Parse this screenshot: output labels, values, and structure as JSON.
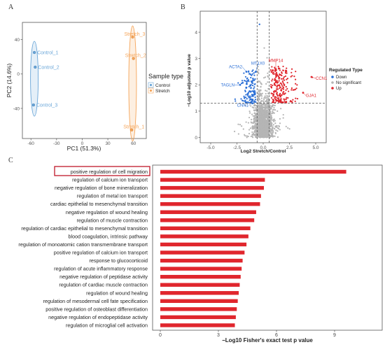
{
  "panels": {
    "a": "A",
    "b": "B",
    "c": "C"
  },
  "chart_data": [
    {
      "type": "scatter",
      "panel": "A",
      "xlabel": "PC1 (51.3%)",
      "ylabel": "PC2 (14.6%)",
      "xlim": [
        -70,
        75
      ],
      "ylim": [
        -75,
        60
      ],
      "xticks": [
        "-60",
        "-30",
        "0",
        "30",
        "60"
      ],
      "xtick_values": [
        -60,
        -30,
        0,
        30,
        60
      ],
      "yticks": [
        "40",
        "0",
        "-40"
      ],
      "ytick_values": [
        40,
        0,
        -40
      ],
      "legend": {
        "title": "Sample type",
        "position": "right",
        "entries": [
          "Control",
          "Stretch"
        ]
      },
      "series": [
        {
          "name": "Control",
          "color": "#6aa6d8",
          "points": [
            {
              "label": "Control_1",
              "x": -56,
              "y": 25
            },
            {
              "label": "Control_2",
              "x": -55,
              "y": 8
            },
            {
              "label": "Control_3",
              "x": -57,
              "y": -36
            }
          ]
        },
        {
          "name": "Stretch",
          "color": "#f5a55a",
          "points": [
            {
              "label": "Stretch_3",
              "x": 59,
              "y": 43
            },
            {
              "label": "Stretch_2",
              "x": 60,
              "y": 18
            },
            {
              "label": "Stretch_1",
              "x": 58,
              "y": -65
            }
          ]
        }
      ]
    },
    {
      "type": "scatter",
      "panel": "B",
      "xlabel": "Log2 Stretch/Control",
      "ylabel": "−Log10 adjusted p value",
      "xlim": [
        -6,
        6
      ],
      "ylim": [
        -0.2,
        4.8
      ],
      "xticks": [
        "-5.0",
        "-2.5",
        "0.0",
        "2.5",
        "5.0"
      ],
      "xtick_values": [
        -5,
        -2.5,
        0,
        2.5,
        5
      ],
      "yticks": [
        "0",
        "1",
        "2",
        "3",
        "4"
      ],
      "ytick_values": [
        0,
        1,
        2,
        3,
        4
      ],
      "thresholds": {
        "log2fc": [
          -0.58,
          0.58
        ],
        "neglog10p": 1.3
      },
      "legend": {
        "title": "Regulated Type",
        "position": "right",
        "entries": [
          "Down",
          "No significant",
          "Up"
        ]
      },
      "colors": {
        "Down": "#2b6fd6",
        "No significant": "#b5b5b5",
        "Up": "#e0262d"
      },
      "labeled_genes": [
        {
          "gene": "MMP14",
          "x": 1.2,
          "y": 2.6,
          "color": "#e0262d"
        },
        {
          "gene": "CCN1",
          "x": 4.6,
          "y": 2.3,
          "color": "#e0262d"
        },
        {
          "gene": "GJA1",
          "x": 3.8,
          "y": 1.7,
          "color": "#e0262d"
        },
        {
          "gene": "ACTA2",
          "x": -1.6,
          "y": 2.5,
          "color": "#2b6fd6"
        },
        {
          "gene": "MT1X0",
          "x": -0.7,
          "y": 2.5,
          "color": "#2b6fd6"
        },
        {
          "gene": "TAGLN",
          "x": -2.2,
          "y": 2.0,
          "color": "#2b6fd6"
        },
        {
          "gene": "CNN1",
          "x": -1.0,
          "y": 1.3,
          "color": "#2b6fd6"
        }
      ]
    },
    {
      "type": "bar",
      "orientation": "horizontal",
      "panel": "C",
      "xlabel": "−Log10 Fisher's exact test p value",
      "xlim": [
        0,
        10
      ],
      "xticks": [
        "0",
        "3",
        "6",
        "9"
      ],
      "xtick_values": [
        0,
        3,
        6,
        9
      ],
      "color": "#e0262d",
      "highlighted": "positive regulation of cell migration",
      "categories": [
        "positive regulation of cell migration",
        "regulation of calcium ion transport",
        "negative regulation of bone mineralization",
        "regulation of metal ion transport",
        "cardiac epithelial to mesenchymal transition",
        "negative regulation of wound healing",
        "regulation of muscle contraction",
        "regulation of cardiac epithelial to mesenchymal transition",
        "blood coagulation, intrinsic pathway",
        "regulation of monoatomic cation transmembrane transport",
        "positive regulation of calcium ion transport",
        "response to glucocorticoid",
        "regulation of acute inflammatory response",
        "negative regulation of peptidase activity",
        "regulation of cardiac muscle contraction",
        "regulation of wound healing",
        "regulation of mesodermal cell fate specification",
        "positive regulation of osteoblast differentiation",
        "negative regulation of endopeptidase activity",
        "regulation of microglial cell activation"
      ],
      "values": [
        9.6,
        5.4,
        5.35,
        5.2,
        5.15,
        4.95,
        4.85,
        4.65,
        4.55,
        4.45,
        4.35,
        4.25,
        4.2,
        4.15,
        4.1,
        4.05,
        4.0,
        3.95,
        3.9,
        3.85
      ]
    }
  ]
}
